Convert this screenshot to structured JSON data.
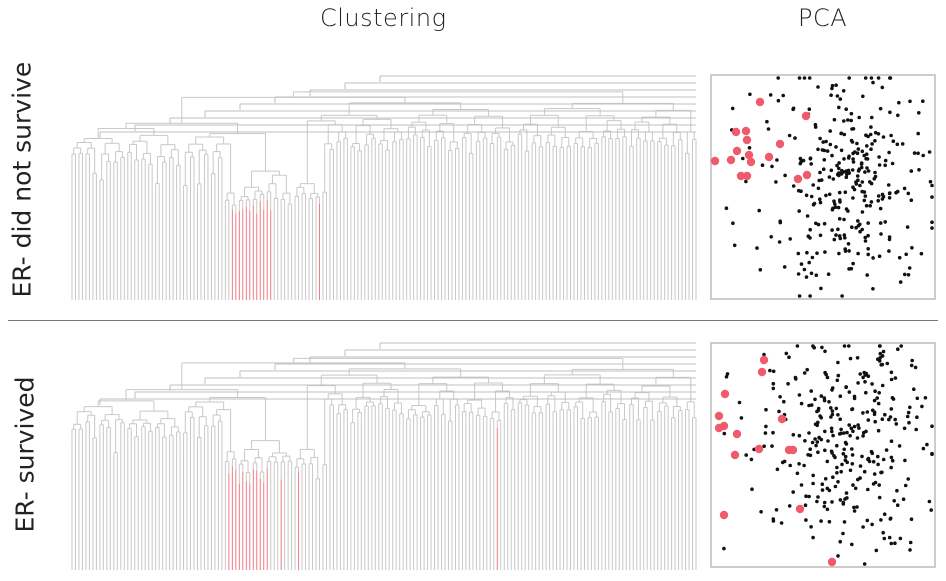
{
  "columns": {
    "left_title": "Clustering",
    "right_title": "PCA"
  },
  "rows": [
    {
      "label": "ER- did not survive"
    },
    {
      "label": "ER- survived"
    }
  ],
  "colors": {
    "dendrogram_line": "#c8c8c8",
    "highlight": "#f07a84",
    "pca_highlight": "#ef5b6a",
    "pca_point": "#111111",
    "frame": "#cccccc",
    "divider": "#777777"
  }
}
